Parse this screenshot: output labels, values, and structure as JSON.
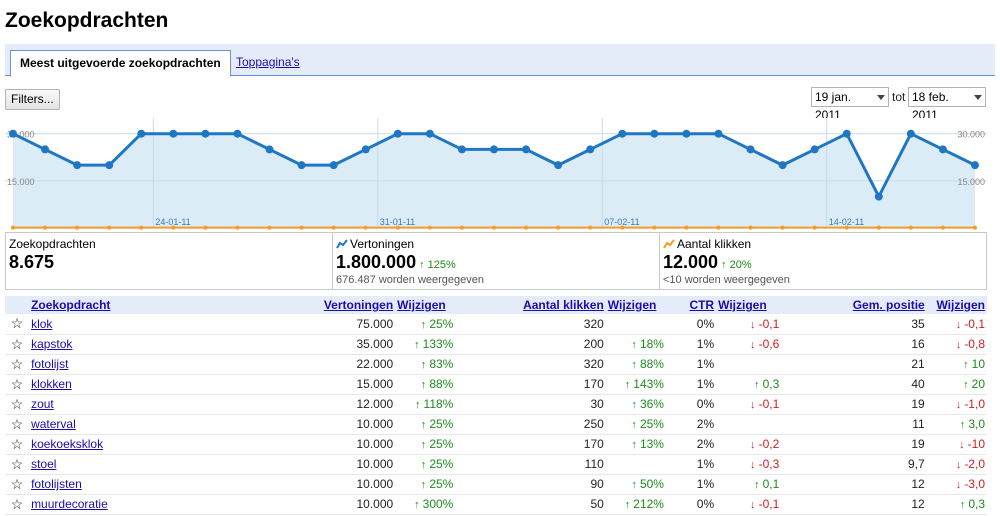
{
  "page": {
    "title": "Zoekopdrachten"
  },
  "tabs": {
    "active": "Meest uitgevoerde zoekopdrachten",
    "other": "Toppagina's"
  },
  "toolbar": {
    "filters_label": "Filters...",
    "date_from": "19 jan. 2011",
    "date_sep": "tot",
    "date_to": "18 feb. 2011"
  },
  "chart_data": {
    "type": "line",
    "ylim": [
      0,
      35000
    ],
    "y_ticks_left": [
      "30.000",
      "15.000"
    ],
    "y_ticks_right": [
      "30.000",
      "15.000"
    ],
    "y_tick_values": [
      30000,
      15000
    ],
    "x_tick_labels": [
      "24-01-11",
      "31-01-11",
      "07-02-11",
      "14-02-11"
    ],
    "x_tick_index": [
      5,
      12,
      19,
      26
    ],
    "series": [
      {
        "color": "#1f77c4",
        "values": [
          30000,
          25000,
          20000,
          20000,
          30000,
          30000,
          30000,
          30000,
          25000,
          20000,
          20000,
          25000,
          30000,
          30000,
          25000,
          25000,
          25000,
          20000,
          25000,
          30000,
          30000,
          30000,
          30000,
          25000,
          20000,
          25000,
          30000,
          10000,
          30000,
          25000,
          20000
        ]
      },
      {
        "color": "#f39c24",
        "values": [
          100,
          100,
          100,
          100,
          100,
          100,
          100,
          100,
          100,
          100,
          100,
          100,
          100,
          100,
          100,
          100,
          100,
          100,
          100,
          100,
          100,
          100,
          100,
          100,
          100,
          100,
          100,
          100,
          100,
          100,
          100
        ]
      }
    ],
    "fill_color": "#dcecf7"
  },
  "summary": {
    "queries": {
      "label": "Zoekopdrachten",
      "value": "8.675"
    },
    "impressions": {
      "label": "Vertoningen",
      "value": "1.800.000",
      "change": "125%",
      "sub": "676.487 worden weergegeven",
      "color": "#1f77c4"
    },
    "clicks": {
      "label": "Aantal klikken",
      "value": "12.000",
      "change": "20%",
      "sub": "<10 worden weergegeven",
      "color": "#f39c24"
    }
  },
  "table": {
    "headers": {
      "query": "Zoekopdracht",
      "impressions": "Vertoningen",
      "imp_change": "Wijzigen",
      "clicks": "Aantal klikken",
      "clk_change": "Wijzigen",
      "ctr": "CTR",
      "ctr_change": "Wijzigen",
      "pos": "Gem. positie",
      "pos_change": "Wijzigen"
    },
    "star_icon": "☆",
    "rows": [
      {
        "query": "klok",
        "impressions": "75.000",
        "imp_change": "25%",
        "imp_dir": "up",
        "clicks": "320",
        "clk_change": "",
        "clk_dir": "",
        "ctr": "0%",
        "ctr_change": "-0,1",
        "ctr_dir": "down",
        "pos": "35",
        "pos_change": "-0,1",
        "pos_dir": "down"
      },
      {
        "query": "kapstok",
        "impressions": "35.000",
        "imp_change": "133%",
        "imp_dir": "up",
        "clicks": "200",
        "clk_change": "18%",
        "clk_dir": "up",
        "ctr": "1%",
        "ctr_change": "-0,6",
        "ctr_dir": "down",
        "pos": "16",
        "pos_change": "-0,8",
        "pos_dir": "down"
      },
      {
        "query": "fotolijst",
        "impressions": "22.000",
        "imp_change": "83%",
        "imp_dir": "up",
        "clicks": "320",
        "clk_change": "88%",
        "clk_dir": "up",
        "ctr": "1%",
        "ctr_change": "",
        "ctr_dir": "",
        "pos": "21",
        "pos_change": "10",
        "pos_dir": "up"
      },
      {
        "query": "klokken",
        "impressions": "15.000",
        "imp_change": "88%",
        "imp_dir": "up",
        "clicks": "170",
        "clk_change": "143%",
        "clk_dir": "up",
        "ctr": "1%",
        "ctr_change": "0,3",
        "ctr_dir": "up",
        "pos": "40",
        "pos_change": "20",
        "pos_dir": "up"
      },
      {
        "query": "zout",
        "impressions": "12.000",
        "imp_change": "118%",
        "imp_dir": "up",
        "clicks": "30",
        "clk_change": "36%",
        "clk_dir": "up",
        "ctr": "0%",
        "ctr_change": "-0,1",
        "ctr_dir": "down",
        "pos": "19",
        "pos_change": "-1,0",
        "pos_dir": "down"
      },
      {
        "query": "waterval",
        "impressions": "10.000",
        "imp_change": "25%",
        "imp_dir": "up",
        "clicks": "250",
        "clk_change": "25%",
        "clk_dir": "up",
        "ctr": "2%",
        "ctr_change": "",
        "ctr_dir": "",
        "pos": "11",
        "pos_change": "3,0",
        "pos_dir": "up"
      },
      {
        "query": "koekoeksklok",
        "impressions": "10.000",
        "imp_change": "25%",
        "imp_dir": "up",
        "clicks": "170",
        "clk_change": "13%",
        "clk_dir": "up",
        "ctr": "2%",
        "ctr_change": "-0,2",
        "ctr_dir": "down",
        "pos": "19",
        "pos_change": "-10",
        "pos_dir": "down"
      },
      {
        "query": "stoel",
        "impressions": "10.000",
        "imp_change": "25%",
        "imp_dir": "up",
        "clicks": "110",
        "clk_change": "",
        "clk_dir": "",
        "ctr": "1%",
        "ctr_change": "-0,3",
        "ctr_dir": "down",
        "pos": "9,7",
        "pos_change": "-2,0",
        "pos_dir": "down"
      },
      {
        "query": "fotolijsten",
        "impressions": "10.000",
        "imp_change": "25%",
        "imp_dir": "up",
        "clicks": "90",
        "clk_change": "50%",
        "clk_dir": "up",
        "ctr": "1%",
        "ctr_change": "0,1",
        "ctr_dir": "up",
        "pos": "12",
        "pos_change": "-3,0",
        "pos_dir": "down"
      },
      {
        "query": "muurdecoratie",
        "impressions": "10.000",
        "imp_change": "300%",
        "imp_dir": "up",
        "clicks": "50",
        "clk_change": "212%",
        "clk_dir": "up",
        "ctr": "0%",
        "ctr_change": "-0,1",
        "ctr_dir": "down",
        "pos": "12",
        "pos_change": "0,3",
        "pos_dir": "up"
      }
    ]
  }
}
